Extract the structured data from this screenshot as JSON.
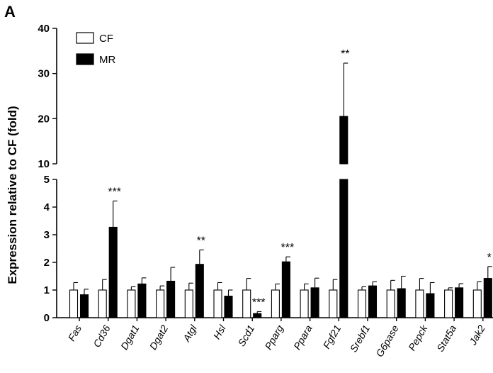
{
  "panel_label": "A",
  "chart_data": {
    "type": "bar",
    "title": "",
    "ylabel": "Expression relative to CF (fold)",
    "xlabel": "",
    "axis_break": true,
    "lower_range": [
      0,
      5
    ],
    "upper_range": [
      10,
      40
    ],
    "lower_ticks": [
      "0",
      "1",
      "2",
      "3",
      "4",
      "5"
    ],
    "upper_ticks": [
      "10",
      "20",
      "30",
      "40"
    ],
    "grid": false,
    "legend_position": "top-left",
    "categories": [
      "Fas",
      "Cd36",
      "Dgat1",
      "Dgat2",
      "Atgl",
      "Hsl",
      "Scd1",
      "Pparg",
      "Ppara",
      "Fgf21",
      "Srebf1",
      "G6pase",
      "Pepck",
      "Stat5a",
      "Jak2"
    ],
    "series": [
      {
        "name": "CF",
        "color": "#ffffff",
        "values": [
          1.0,
          1.0,
          1.0,
          1.0,
          1.0,
          1.0,
          1.0,
          1.0,
          1.0,
          1.0,
          1.0,
          1.0,
          1.0,
          1.0,
          1.0
        ],
        "errors": [
          0.27,
          0.38,
          0.12,
          0.15,
          0.25,
          0.27,
          0.42,
          0.22,
          0.22,
          0.38,
          0.12,
          0.35,
          0.42,
          0.08,
          0.3
        ]
      },
      {
        "name": "MR",
        "color": "#000000",
        "values": [
          0.83,
          3.27,
          1.22,
          1.32,
          1.93,
          0.78,
          0.15,
          2.02,
          1.08,
          20.5,
          1.15,
          1.05,
          0.87,
          1.08,
          1.42
        ],
        "errors": [
          0.2,
          0.95,
          0.22,
          0.5,
          0.52,
          0.22,
          0.07,
          0.18,
          0.35,
          11.8,
          0.15,
          0.45,
          0.4,
          0.15,
          0.43
        ]
      }
    ],
    "significance": [
      "",
      "***",
      "",
      "",
      "**",
      "",
      "***",
      "***",
      "",
      "**",
      "",
      "",
      "",
      "",
      "*"
    ]
  }
}
